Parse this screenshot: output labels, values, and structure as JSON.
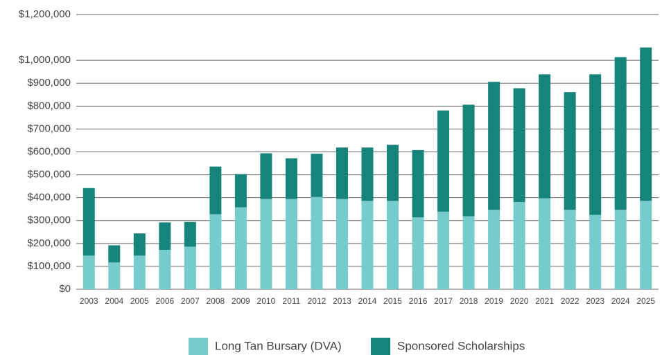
{
  "chart_data": {
    "type": "stacked_bar",
    "categories": [
      "2003",
      "2004",
      "2005",
      "2006",
      "2007",
      "2008",
      "2009",
      "2010",
      "2011",
      "2012",
      "2013",
      "2014",
      "2015",
      "2016",
      "2017",
      "2018",
      "2019",
      "2020",
      "2021",
      "2022",
      "2023",
      "2024",
      "2025"
    ],
    "series": [
      {
        "name": "Long Tan Bursary (DVA)",
        "color": "#76cccc",
        "values": [
          147000,
          117000,
          147000,
          172000,
          186000,
          328000,
          358000,
          394000,
          394000,
          403000,
          394000,
          386000,
          386000,
          314000,
          339000,
          319000,
          347000,
          381000,
          397000,
          347000,
          325000,
          347000,
          386000
        ]
      },
      {
        "name": "Sponsored Scholarships",
        "color": "#16847b",
        "values": [
          295000,
          75000,
          97000,
          120000,
          108000,
          208000,
          145000,
          200000,
          178000,
          189000,
          225000,
          233000,
          245000,
          294000,
          442000,
          487000,
          559000,
          497000,
          542000,
          514000,
          614000,
          667000,
          670000
        ]
      }
    ],
    "ylim": [
      0,
      1200000
    ],
    "yticks": [
      {
        "value": 0,
        "label": "$0"
      },
      {
        "value": 100000,
        "label": "$100,000"
      },
      {
        "value": 200000,
        "label": "$200,000"
      },
      {
        "value": 300000,
        "label": "$300,000"
      },
      {
        "value": 400000,
        "label": "$400,000"
      },
      {
        "value": 500000,
        "label": "$500,000"
      },
      {
        "value": 600000,
        "label": "$600,000"
      },
      {
        "value": 700000,
        "label": "$700,000"
      },
      {
        "value": 800000,
        "label": "$800,000"
      },
      {
        "value": 900000,
        "label": "$900,000"
      },
      {
        "value": 1000000,
        "label": "$1,000,000"
      },
      {
        "value": 1200000,
        "label": "$1,200,000"
      }
    ],
    "grid": true,
    "legend": "bottom"
  }
}
